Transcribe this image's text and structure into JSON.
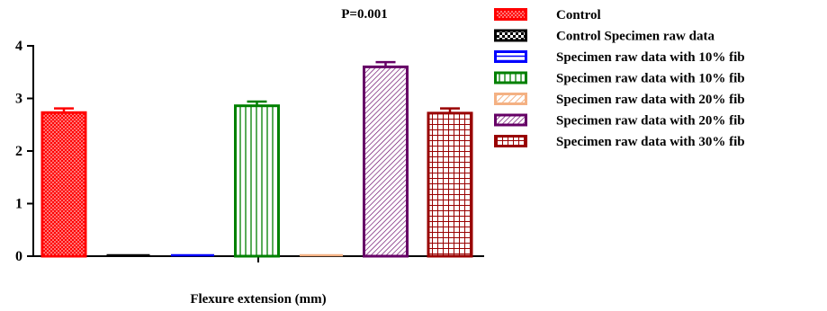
{
  "chart_data": {
    "type": "bar",
    "title": "P=0.001",
    "xlabel": "Flexure extension (mm)",
    "ylabel": "",
    "ylim": [
      0,
      4
    ],
    "yticks": [
      "0",
      "1",
      "2",
      "3",
      "4"
    ],
    "grid": false,
    "legend_position": "right",
    "series": [
      {
        "name": "Control",
        "value": 2.73,
        "error": 0.08,
        "color": "#ff0000",
        "pattern": "dots"
      },
      {
        "name": "Control Specimen raw data",
        "value": 0.0,
        "error": 0.0,
        "color": "#000000",
        "pattern": "checker"
      },
      {
        "name": "Specimen raw data with 10% fib",
        "value": 0.0,
        "error": 0.0,
        "color": "#0000ff",
        "pattern": "hlines"
      },
      {
        "name": "Specimen raw data with 10% fib",
        "value": 2.86,
        "error": 0.08,
        "color": "#008000",
        "pattern": "vlines"
      },
      {
        "name": "Specimen raw data with 20% fib",
        "value": 0.0,
        "error": 0.0,
        "color": "#f4b183",
        "pattern": "diag"
      },
      {
        "name": "Specimen raw data with 20% fib",
        "value": 3.6,
        "error": 0.09,
        "color": "#660066",
        "pattern": "diag-dense"
      },
      {
        "name": "Specimen raw data with 30% fib",
        "value": 2.72,
        "error": 0.09,
        "color": "#990000",
        "pattern": "grid"
      }
    ]
  }
}
